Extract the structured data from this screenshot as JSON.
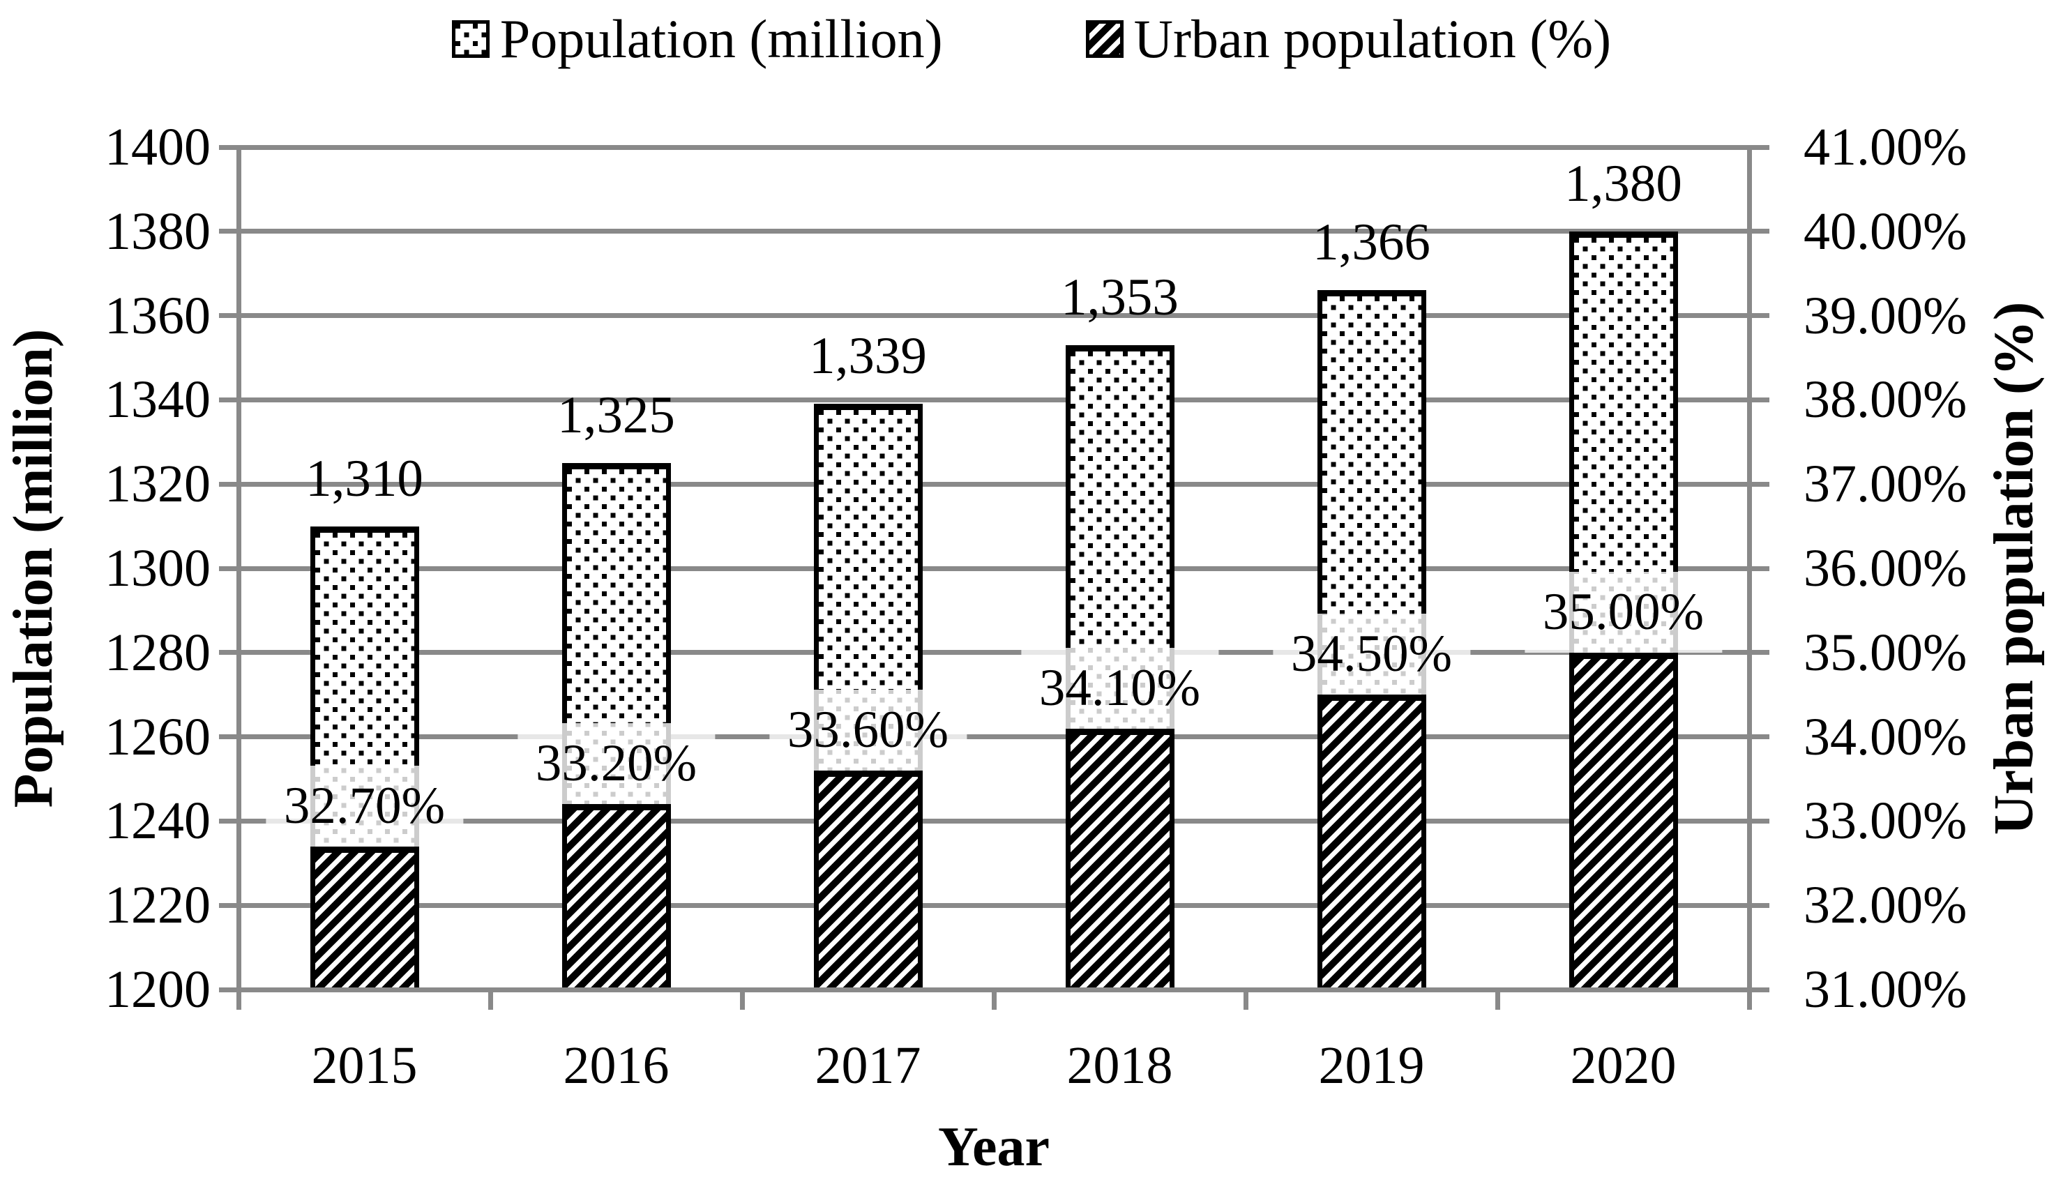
{
  "chart_data": {
    "type": "bar",
    "categories": [
      "2015",
      "2016",
      "2017",
      "2018",
      "2019",
      "2020"
    ],
    "series": [
      {
        "name": "Population (million)",
        "axis": "left",
        "pattern": "dots",
        "values": [
          1310,
          1325,
          1339,
          1353,
          1366,
          1380
        ],
        "data_labels": [
          "1,310",
          "1,325",
          "1,339",
          "1,353",
          "1,366",
          "1,380"
        ]
      },
      {
        "name": "Urban population (%)",
        "axis": "right",
        "pattern": "hatch",
        "values": [
          32.7,
          33.2,
          33.6,
          34.1,
          34.5,
          35.0
        ],
        "data_labels": [
          "32.70%",
          "33.20%",
          "33.60%",
          "34.10%",
          "34.50%",
          "35.00%"
        ]
      }
    ],
    "left_axis": {
      "title": "Population (million)",
      "min": 1200,
      "max": 1400,
      "tick_step": 20,
      "tick_labels": [
        "1400",
        "1380",
        "1360",
        "1340",
        "1320",
        "1300",
        "1280",
        "1260",
        "1240",
        "1220",
        "1200"
      ]
    },
    "right_axis": {
      "title": "Urban population (%)",
      "min": 31,
      "max": 41,
      "tick_step": 1,
      "tick_labels": [
        "41.00%",
        "40.00%",
        "39.00%",
        "38.00%",
        "37.00%",
        "36.00%",
        "35.00%",
        "34.00%",
        "33.00%",
        "32.00%",
        "31.00%"
      ]
    },
    "x_axis": {
      "title": "Year"
    },
    "legend": [
      "Population (million)",
      "Urban population (%)"
    ],
    "legend_position": "top",
    "grid": true,
    "colors": {
      "grid": "#898989",
      "axis": "#898989",
      "bar_fill": "#ffffff",
      "bar_stroke": "#000000",
      "text": "#000000",
      "label_background": "rgba(255,255,255,0.8)"
    }
  }
}
